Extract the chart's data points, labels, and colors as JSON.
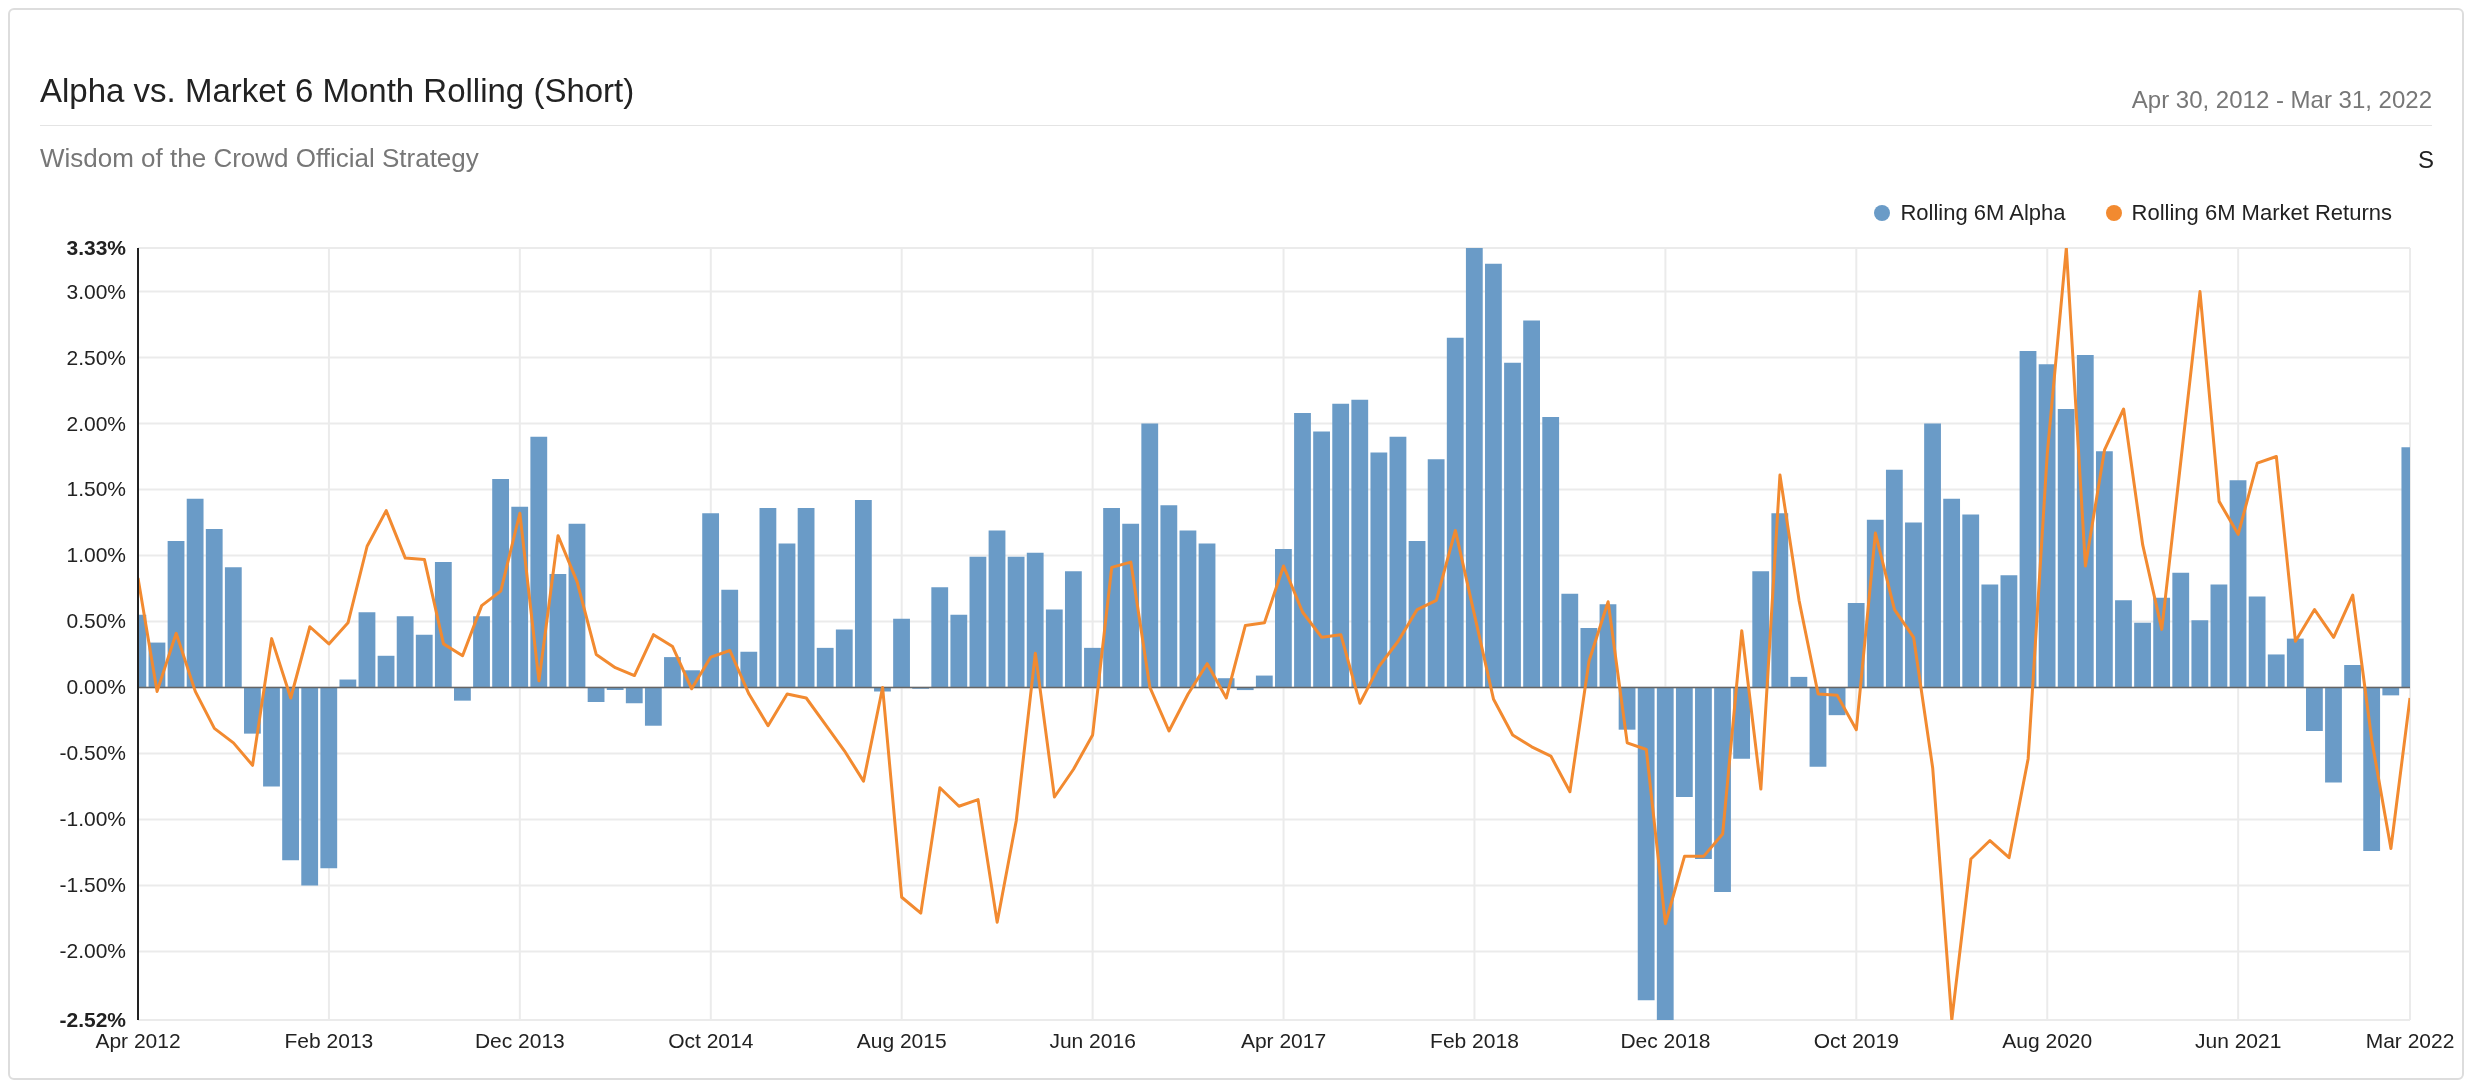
{
  "chart_data": {
    "type": "bar",
    "title": "Alpha vs. Market 6 Month Rolling (Short)",
    "subtitle": "Wisdom of the Crowd Official Strategy",
    "annotations": [
      "Apr 30, 2012 - Mar 31, 2022",
      "S"
    ],
    "x": [
      "2012-04",
      "2012-05",
      "2012-06",
      "2012-07",
      "2012-08",
      "2012-09",
      "2012-10",
      "2012-11",
      "2012-12",
      "2013-01",
      "2013-02",
      "2013-03",
      "2013-04",
      "2013-05",
      "2013-06",
      "2013-07",
      "2013-08",
      "2013-09",
      "2013-10",
      "2013-11",
      "2013-12",
      "2014-01",
      "2014-02",
      "2014-03",
      "2014-04",
      "2014-05",
      "2014-06",
      "2014-07",
      "2014-08",
      "2014-09",
      "2014-10",
      "2014-11",
      "2014-12",
      "2015-01",
      "2015-02",
      "2015-03",
      "2015-04",
      "2015-05",
      "2015-06",
      "2015-07",
      "2015-08",
      "2015-09",
      "2015-10",
      "2015-11",
      "2015-12",
      "2016-01",
      "2016-02",
      "2016-03",
      "2016-04",
      "2016-05",
      "2016-06",
      "2016-07",
      "2016-08",
      "2016-09",
      "2016-10",
      "2016-11",
      "2016-12",
      "2017-01",
      "2017-02",
      "2017-03",
      "2017-04",
      "2017-05",
      "2017-06",
      "2017-07",
      "2017-08",
      "2017-09",
      "2017-10",
      "2017-11",
      "2017-12",
      "2018-01",
      "2018-02",
      "2018-03",
      "2018-04",
      "2018-05",
      "2018-06",
      "2018-07",
      "2018-08",
      "2018-09",
      "2018-10",
      "2018-11",
      "2018-12",
      "2019-01",
      "2019-02",
      "2019-03",
      "2019-04",
      "2019-05",
      "2019-06",
      "2019-07",
      "2019-08",
      "2019-09",
      "2019-10",
      "2019-11",
      "2019-12",
      "2020-01",
      "2020-02",
      "2020-03",
      "2020-04",
      "2020-05",
      "2020-06",
      "2020-07",
      "2020-08",
      "2020-09",
      "2020-10",
      "2020-11",
      "2020-12",
      "2021-01",
      "2021-02",
      "2021-03",
      "2021-04",
      "2021-05",
      "2021-06",
      "2021-07",
      "2021-08",
      "2021-09",
      "2021-10",
      "2021-11",
      "2021-12",
      "2022-01",
      "2022-02",
      "2022-03"
    ],
    "series": [
      {
        "name": "Rolling 6M Alpha",
        "color": "#6a9bc7",
        "values": [
          0.55,
          0.34,
          1.11,
          1.43,
          1.2,
          0.91,
          -0.35,
          -0.75,
          -1.31,
          -1.5,
          -1.37,
          0.06,
          0.57,
          0.24,
          0.54,
          0.4,
          0.95,
          -0.1,
          0.54,
          1.58,
          1.37,
          1.9,
          0.86,
          1.24,
          -0.11,
          -0.02,
          -0.12,
          -0.29,
          0.23,
          0.13,
          1.32,
          0.74,
          0.27,
          1.36,
          1.09,
          1.36,
          0.3,
          0.44,
          1.42,
          -0.03,
          0.52,
          -0.01,
          0.76,
          0.55,
          0.99,
          1.19,
          0.99,
          1.02,
          0.59,
          0.88,
          0.3,
          1.36,
          1.24,
          2.0,
          1.38,
          1.19,
          1.09,
          0.07,
          -0.02,
          0.09,
          1.05,
          2.08,
          1.94,
          2.15,
          2.18,
          1.78,
          1.9,
          1.11,
          1.73,
          2.65,
          3.33,
          3.21,
          2.46,
          2.78,
          2.05,
          0.71,
          0.45,
          0.63,
          -0.32,
          -2.37,
          -2.52,
          -0.83,
          -1.3,
          -1.55,
          -0.54,
          0.88,
          1.32,
          0.08,
          -0.6,
          -0.21,
          0.64,
          1.27,
          1.65,
          1.25,
          2.0,
          1.43,
          1.31,
          0.78,
          0.85,
          2.55,
          2.45,
          2.11,
          2.52,
          1.79,
          0.66,
          0.49,
          0.68,
          0.87,
          0.51,
          0.78,
          1.57,
          0.69,
          0.25,
          0.37,
          -0.33,
          -0.72,
          0.17,
          -1.24,
          -0.06,
          1.82
        ]
      },
      {
        "name": "Rolling 6M Market Returns",
        "type": "line",
        "color": "#f28a30",
        "values": [
          0.83,
          -0.03,
          0.41,
          -0.03,
          -0.31,
          -0.42,
          -0.59,
          0.37,
          -0.08,
          0.46,
          0.33,
          0.49,
          1.07,
          1.34,
          0.98,
          0.97,
          0.33,
          0.24,
          0.62,
          0.73,
          1.32,
          0.05,
          1.15,
          0.8,
          0.25,
          0.15,
          0.09,
          0.4,
          0.31,
          -0.01,
          0.23,
          0.28,
          -0.05,
          -0.29,
          -0.05,
          -0.08,
          -0.28,
          -0.48,
          -0.71,
          0.0,
          -1.59,
          -1.71,
          -0.76,
          -0.9,
          -0.85,
          -1.78,
          -1.01,
          0.26,
          -0.83,
          -0.62,
          -0.36,
          0.91,
          0.95,
          0.0,
          -0.33,
          -0.05,
          0.18,
          -0.08,
          0.47,
          0.49,
          0.92,
          0.57,
          0.38,
          0.4,
          -0.12,
          0.16,
          0.35,
          0.59,
          0.66,
          1.19,
          0.55,
          -0.09,
          -0.36,
          -0.45,
          -0.52,
          -0.79,
          0.2,
          0.65,
          -0.42,
          -0.47,
          -1.79,
          -1.28,
          -1.28,
          -1.11,
          0.43,
          -0.77,
          1.61,
          0.66,
          -0.05,
          -0.06,
          -0.32,
          1.17,
          0.59,
          0.38,
          -0.61,
          -2.52,
          -1.3,
          -1.16,
          -1.29,
          -0.54,
          1.77,
          3.33,
          0.92,
          1.8,
          2.11,
          1.08,
          0.44,
          1.72,
          3.0,
          1.41,
          1.16,
          1.7,
          1.75,
          0.35,
          0.59,
          0.38,
          0.7,
          -0.4,
          -1.22,
          -0.08
        ]
      }
    ],
    "xlim": [
      "2012-04",
      "2022-03"
    ],
    "xticks": [
      {
        "value": "2012-04",
        "label": "Apr 2012"
      },
      {
        "value": "2013-02",
        "label": "Feb 2013"
      },
      {
        "value": "2013-12",
        "label": "Dec 2013"
      },
      {
        "value": "2014-10",
        "label": "Oct 2014"
      },
      {
        "value": "2015-08",
        "label": "Aug 2015"
      },
      {
        "value": "2016-06",
        "label": "Jun 2016"
      },
      {
        "value": "2017-04",
        "label": "Apr 2017"
      },
      {
        "value": "2018-02",
        "label": "Feb 2018"
      },
      {
        "value": "2018-12",
        "label": "Dec 2018"
      },
      {
        "value": "2019-10",
        "label": "Oct 2019"
      },
      {
        "value": "2020-08",
        "label": "Aug 2020"
      },
      {
        "value": "2021-06",
        "label": "Jun 2021"
      },
      {
        "value": "2022-03",
        "label": "Mar 2022"
      }
    ],
    "ylim": [
      -2.52,
      3.33
    ],
    "yticks": [
      {
        "value": -2.52,
        "label": "-2.52%"
      },
      {
        "value": -2,
        "label": "-2.00%"
      },
      {
        "value": -1.5,
        "label": "-1.50%"
      },
      {
        "value": -1,
        "label": "-1.00%"
      },
      {
        "value": -0.5,
        "label": "-0.50%"
      },
      {
        "value": 0,
        "label": "0.00%"
      },
      {
        "value": 0.5,
        "label": "0.50%"
      },
      {
        "value": 1,
        "label": "1.00%"
      },
      {
        "value": 1.5,
        "label": "1.50%"
      },
      {
        "value": 2,
        "label": "2.00%"
      },
      {
        "value": 2.5,
        "label": "2.50%"
      },
      {
        "value": 3,
        "label": "3.00%"
      },
      {
        "value": 3.33,
        "label": "3.33%"
      }
    ],
    "grid": true,
    "legend": "top right"
  }
}
